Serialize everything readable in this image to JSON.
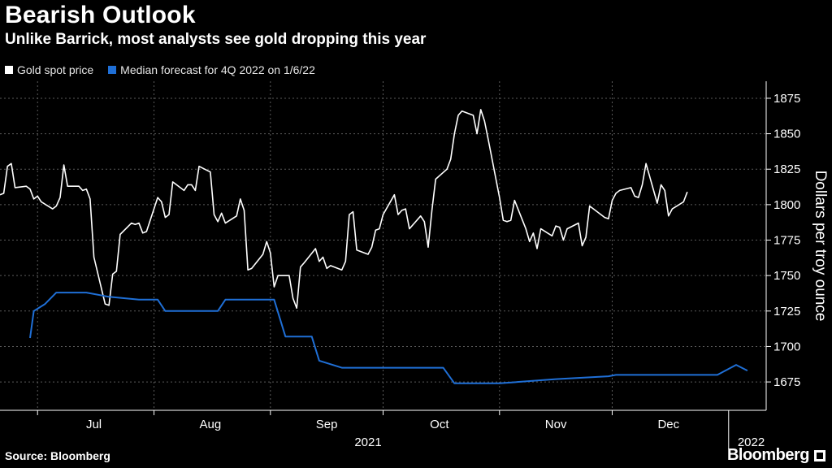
{
  "title": "Bearish Outlook",
  "subtitle": "Unlike Barrick, most analysts see gold dropping this year",
  "legend": [
    {
      "label": "Gold spot price",
      "color": "#ffffff"
    },
    {
      "label": "Median forecast for 4Q 2022 on 1/6/22",
      "color": "#1f6fd6"
    }
  ],
  "source": "Source: Bloomberg",
  "brand": "Bloomberg",
  "colors": {
    "background": "#000000",
    "grid": "#5a5a5a",
    "gold": "#ffffff",
    "forecast": "#1f6fd6"
  },
  "chart_data": {
    "type": "line",
    "ylabel": "Dollars per troy ounce",
    "ylim": [
      1655,
      1887
    ],
    "yticks": [
      1675,
      1700,
      1725,
      1750,
      1775,
      1800,
      1825,
      1850,
      1875
    ],
    "x_range": [
      "2021-06-21",
      "2022-01-11"
    ],
    "month_ticks": [
      {
        "label": "Jul",
        "date": "2021-07-01"
      },
      {
        "label": "Aug",
        "date": "2021-08-01"
      },
      {
        "label": "Sep",
        "date": "2021-09-01"
      },
      {
        "label": "Oct",
        "date": "2021-10-01"
      },
      {
        "label": "Nov",
        "date": "2021-11-01"
      },
      {
        "label": "Dec",
        "date": "2021-12-01"
      }
    ],
    "year_labels": [
      {
        "label": "2021",
        "date": "2021-09-27"
      },
      {
        "label": "2022",
        "date": "2022-01-07"
      }
    ],
    "grid": true,
    "legend_position": "top-left",
    "series": [
      {
        "name": "Gold spot price",
        "points": [
          [
            "2021-06-21",
            1807
          ],
          [
            "2021-06-22",
            1808
          ],
          [
            "2021-06-23",
            1827
          ],
          [
            "2021-06-24",
            1829
          ],
          [
            "2021-06-25",
            1812
          ],
          [
            "2021-06-28",
            1813
          ],
          [
            "2021-06-29",
            1811
          ],
          [
            "2021-06-30",
            1804
          ],
          [
            "2021-07-01",
            1806
          ],
          [
            "2021-07-02",
            1802
          ],
          [
            "2021-07-05",
            1797
          ],
          [
            "2021-07-06",
            1799
          ],
          [
            "2021-07-07",
            1805
          ],
          [
            "2021-07-08",
            1828
          ],
          [
            "2021-07-09",
            1813
          ],
          [
            "2021-07-12",
            1813
          ],
          [
            "2021-07-13",
            1810
          ],
          [
            "2021-07-14",
            1811
          ],
          [
            "2021-07-15",
            1804
          ],
          [
            "2021-07-16",
            1763
          ],
          [
            "2021-07-19",
            1730
          ],
          [
            "2021-07-20",
            1729
          ],
          [
            "2021-07-21",
            1751
          ],
          [
            "2021-07-22",
            1753
          ],
          [
            "2021-07-23",
            1779
          ],
          [
            "2021-07-26",
            1787
          ],
          [
            "2021-07-27",
            1786
          ],
          [
            "2021-07-28",
            1787
          ],
          [
            "2021-07-29",
            1780
          ],
          [
            "2021-07-30",
            1781
          ],
          [
            "2021-08-02",
            1805
          ],
          [
            "2021-08-03",
            1802
          ],
          [
            "2021-08-04",
            1791
          ],
          [
            "2021-08-05",
            1793
          ],
          [
            "2021-08-06",
            1816
          ],
          [
            "2021-08-09",
            1810
          ],
          [
            "2021-08-10",
            1814
          ],
          [
            "2021-08-11",
            1814
          ],
          [
            "2021-08-12",
            1810
          ],
          [
            "2021-08-13",
            1827
          ],
          [
            "2021-08-16",
            1823
          ],
          [
            "2021-08-17",
            1793
          ],
          [
            "2021-08-18",
            1788
          ],
          [
            "2021-08-19",
            1794
          ],
          [
            "2021-08-20",
            1787
          ],
          [
            "2021-08-23",
            1792
          ],
          [
            "2021-08-24",
            1804
          ],
          [
            "2021-08-25",
            1796
          ],
          [
            "2021-08-26",
            1754
          ],
          [
            "2021-08-27",
            1755
          ],
          [
            "2021-08-30",
            1765
          ],
          [
            "2021-08-31",
            1774
          ],
          [
            "2021-09-01",
            1766
          ],
          [
            "2021-09-02",
            1742
          ],
          [
            "2021-09-03",
            1750
          ],
          [
            "2021-09-06",
            1750
          ],
          [
            "2021-09-07",
            1734
          ],
          [
            "2021-09-08",
            1727
          ],
          [
            "2021-09-09",
            1756
          ],
          [
            "2021-09-10",
            1759
          ],
          [
            "2021-09-13",
            1769
          ],
          [
            "2021-09-14",
            1760
          ],
          [
            "2021-09-15",
            1763
          ],
          [
            "2021-09-16",
            1755
          ],
          [
            "2021-09-17",
            1757
          ],
          [
            "2021-09-20",
            1754
          ],
          [
            "2021-09-21",
            1760
          ],
          [
            "2021-09-22",
            1793
          ],
          [
            "2021-09-23",
            1795
          ],
          [
            "2021-09-24",
            1768
          ],
          [
            "2021-09-27",
            1765
          ],
          [
            "2021-09-28",
            1770
          ],
          [
            "2021-09-29",
            1782
          ],
          [
            "2021-09-30",
            1783
          ],
          [
            "2021-10-01",
            1793
          ],
          [
            "2021-10-04",
            1807
          ],
          [
            "2021-10-05",
            1793
          ],
          [
            "2021-10-06",
            1796
          ],
          [
            "2021-10-07",
            1797
          ],
          [
            "2021-10-08",
            1783
          ],
          [
            "2021-10-11",
            1792
          ],
          [
            "2021-10-12",
            1788
          ],
          [
            "2021-10-13",
            1770
          ],
          [
            "2021-10-14",
            1796
          ],
          [
            "2021-10-15",
            1818
          ],
          [
            "2021-10-18",
            1825
          ],
          [
            "2021-10-19",
            1832
          ],
          [
            "2021-10-20",
            1850
          ],
          [
            "2021-10-21",
            1863
          ],
          [
            "2021-10-22",
            1866
          ],
          [
            "2021-10-25",
            1863
          ],
          [
            "2021-10-26",
            1850
          ],
          [
            "2021-10-27",
            1867
          ],
          [
            "2021-10-28",
            1859
          ],
          [
            "2021-10-29",
            1846
          ],
          [
            "2021-11-01",
            1805
          ],
          [
            "2021-11-02",
            1789
          ],
          [
            "2021-11-03",
            1788
          ],
          [
            "2021-11-04",
            1789
          ],
          [
            "2021-11-05",
            1803
          ],
          [
            "2021-11-08",
            1783
          ],
          [
            "2021-11-09",
            1774
          ],
          [
            "2021-11-10",
            1780
          ],
          [
            "2021-11-11",
            1769
          ],
          [
            "2021-11-12",
            1783
          ],
          [
            "2021-11-15",
            1778
          ],
          [
            "2021-11-16",
            1785
          ],
          [
            "2021-11-17",
            1784
          ],
          [
            "2021-11-18",
            1775
          ],
          [
            "2021-11-19",
            1783
          ],
          [
            "2021-11-22",
            1787
          ],
          [
            "2021-11-23",
            1771
          ],
          [
            "2021-11-24",
            1777
          ],
          [
            "2021-11-25",
            1799
          ],
          [
            "2021-11-26",
            1797
          ],
          [
            "2021-11-29",
            1791
          ],
          [
            "2021-11-30",
            1790
          ],
          [
            "2021-12-01",
            1803
          ],
          [
            "2021-12-02",
            1808
          ],
          [
            "2021-12-03",
            1810
          ],
          [
            "2021-12-06",
            1812
          ],
          [
            "2021-12-07",
            1806
          ],
          [
            "2021-12-08",
            1805
          ],
          [
            "2021-12-09",
            1814
          ],
          [
            "2021-12-10",
            1829
          ],
          [
            "2021-12-13",
            1801
          ],
          [
            "2021-12-14",
            1814
          ],
          [
            "2021-12-15",
            1810
          ],
          [
            "2021-12-16",
            1792
          ],
          [
            "2021-12-17",
            1797
          ],
          [
            "2021-12-20",
            1802
          ],
          [
            "2021-12-21",
            1809
          ]
        ]
      },
      {
        "name": "Median forecast for 4Q 2022 on 1/6/22",
        "points": [
          [
            "2021-06-29",
            1706
          ],
          [
            "2021-06-30",
            1725
          ],
          [
            "2021-07-03",
            1730
          ],
          [
            "2021-07-06",
            1738
          ],
          [
            "2021-07-14",
            1738
          ],
          [
            "2021-07-20",
            1735
          ],
          [
            "2021-07-28",
            1733
          ],
          [
            "2021-08-02",
            1733
          ],
          [
            "2021-08-04",
            1725
          ],
          [
            "2021-08-18",
            1725
          ],
          [
            "2021-08-20",
            1733
          ],
          [
            "2021-09-02",
            1733
          ],
          [
            "2021-09-05",
            1707
          ],
          [
            "2021-09-12",
            1707
          ],
          [
            "2021-09-14",
            1690
          ],
          [
            "2021-09-20",
            1685
          ],
          [
            "2021-10-17",
            1685
          ],
          [
            "2021-10-20",
            1674
          ],
          [
            "2021-11-01",
            1674
          ],
          [
            "2021-11-16",
            1677
          ],
          [
            "2021-11-30",
            1679
          ],
          [
            "2021-12-02",
            1680
          ],
          [
            "2021-12-15",
            1680
          ],
          [
            "2021-12-29",
            1680
          ],
          [
            "2022-01-03",
            1687
          ],
          [
            "2022-01-06",
            1683
          ]
        ]
      }
    ]
  }
}
